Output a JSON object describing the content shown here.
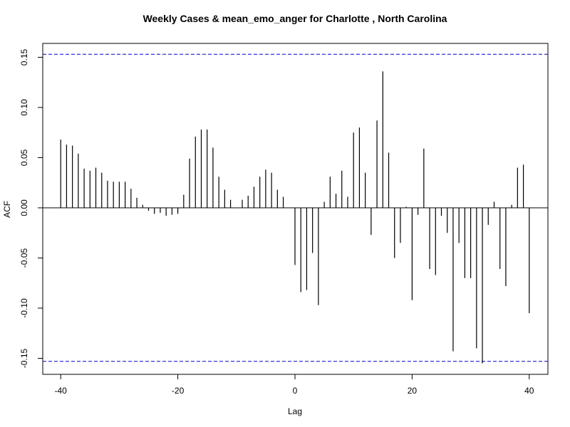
{
  "chart_data": {
    "type": "bar",
    "title": "Weekly Cases & mean_emo_anger for Charlotte , North Carolina",
    "xlabel": "Lag",
    "ylabel": "ACF",
    "xlim": [
      -40,
      40
    ],
    "ylim": [
      -0.16,
      0.16
    ],
    "x_ticks": [
      -40,
      -20,
      0,
      20,
      40
    ],
    "y_ticks": [
      -0.15,
      -0.1,
      -0.05,
      0.0,
      0.05,
      0.1,
      0.15
    ],
    "y_tick_labels": [
      "-0.15",
      "-0.10",
      "-0.05",
      "0.00",
      "0.05",
      "0.10",
      "0.15"
    ],
    "confidence_bounds": [
      0.153,
      -0.153
    ],
    "confidence_color": "#0000cc",
    "bar_color": "#000000",
    "lags": [
      -40,
      -39,
      -38,
      -37,
      -36,
      -35,
      -34,
      -33,
      -32,
      -31,
      -30,
      -29,
      -28,
      -27,
      -26,
      -25,
      -24,
      -23,
      -22,
      -21,
      -20,
      -19,
      -18,
      -17,
      -16,
      -15,
      -14,
      -13,
      -12,
      -11,
      -10,
      -9,
      -8,
      -7,
      -6,
      -5,
      -4,
      -3,
      -2,
      -1,
      0,
      1,
      2,
      3,
      4,
      5,
      6,
      7,
      8,
      9,
      10,
      11,
      12,
      13,
      14,
      15,
      16,
      17,
      18,
      19,
      20,
      21,
      22,
      23,
      24,
      25,
      26,
      27,
      28,
      29,
      30,
      31,
      32,
      33,
      34,
      35,
      36,
      37,
      38,
      39,
      40
    ],
    "values": [
      0.068,
      0.063,
      0.062,
      0.054,
      0.039,
      0.037,
      0.04,
      0.035,
      0.027,
      0.026,
      0.026,
      0.026,
      0.019,
      0.01,
      0.003,
      -0.003,
      -0.006,
      -0.005,
      -0.008,
      -0.007,
      -0.006,
      0.013,
      0.049,
      0.071,
      0.078,
      0.078,
      0.06,
      0.031,
      0.018,
      0.008,
      0.0,
      0.008,
      0.012,
      0.021,
      0.031,
      0.038,
      0.035,
      0.018,
      0.011,
      0.0,
      -0.057,
      -0.084,
      -0.082,
      -0.045,
      -0.097,
      0.006,
      0.031,
      0.014,
      0.037,
      0.011,
      0.075,
      0.08,
      0.035,
      -0.027,
      0.087,
      0.136,
      0.055,
      -0.05,
      -0.035,
      0.001,
      -0.092,
      -0.007,
      0.059,
      -0.061,
      -0.067,
      -0.008,
      -0.025,
      -0.143,
      -0.035,
      -0.07,
      -0.07,
      -0.14,
      -0.155,
      -0.017,
      0.006,
      -0.061,
      -0.078,
      0.003,
      0.04,
      0.043,
      -0.105
    ]
  }
}
